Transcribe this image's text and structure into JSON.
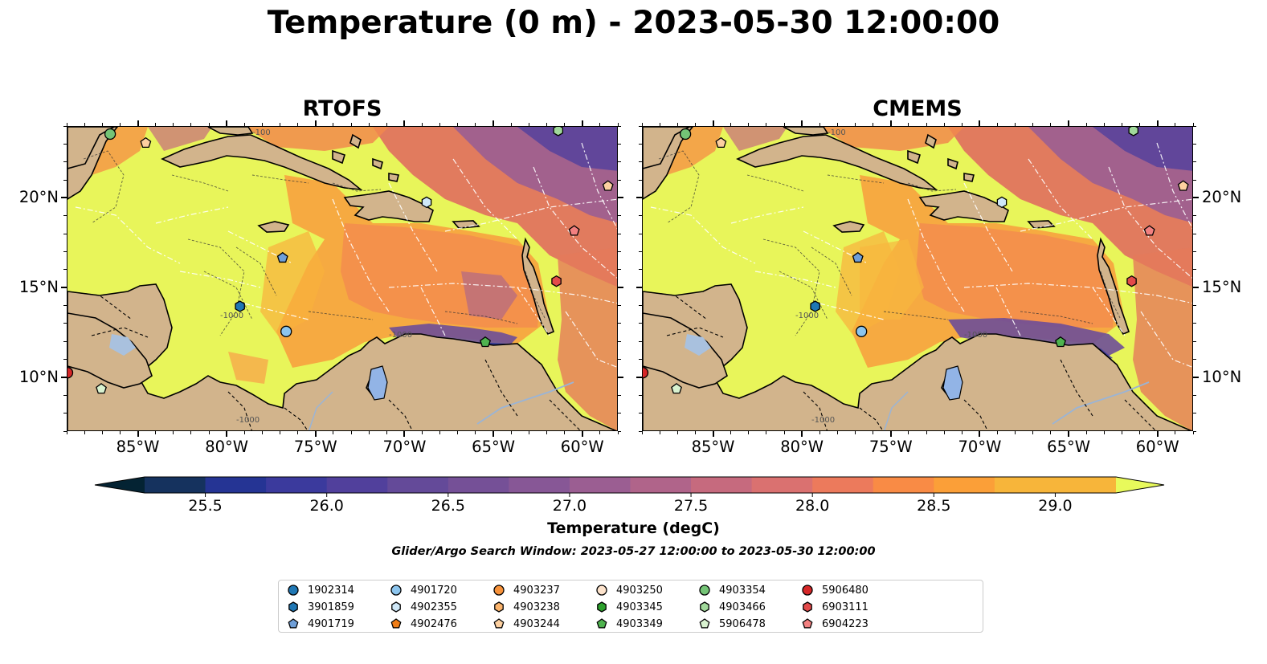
{
  "title": "Temperature (0 m) - 2023-05-30 12:00:00",
  "panels": [
    {
      "id": "rtofs",
      "title": "RTOFS"
    },
    {
      "id": "cmems",
      "title": "CMEMS"
    }
  ],
  "map": {
    "lon_range": [
      -89,
      -58
    ],
    "lat_range": [
      7,
      24
    ],
    "lon_ticks": [
      -85,
      -80,
      -75,
      -70,
      -65,
      -60
    ],
    "lat_ticks": [
      20,
      15,
      10
    ],
    "lon_tick_labels": [
      "85°W",
      "80°W",
      "75°W",
      "70°W",
      "65°W",
      "60°W"
    ],
    "lat_tick_labels": [
      "20°N",
      "15°N",
      "10°N"
    ],
    "land_color": "#d2b48c",
    "ocean_warm_color": "#e8f55a",
    "bathymetry_labels": [
      "-1000",
      "-100"
    ]
  },
  "colorbar": {
    "label": "Temperature (degC)",
    "min": 25.25,
    "max": 29.25,
    "step": 0.25,
    "tick_values": [
      25.5,
      26.0,
      26.5,
      27.0,
      27.5,
      28.0,
      28.5,
      29.0
    ],
    "tick_labels": [
      "25.5",
      "26.0",
      "26.5",
      "27.0",
      "27.5",
      "28.0",
      "28.5",
      "29.0"
    ],
    "extend": "both",
    "colors": [
      "#042333",
      "#15325e",
      "#253494",
      "#3b3a9d",
      "#51409c",
      "#644a99",
      "#755097",
      "#875796",
      "#9b5e92",
      "#b0648a",
      "#c66a7e",
      "#da7170",
      "#ec7a5c",
      "#f98b45",
      "#fb9f38",
      "#f7b53a",
      "#e8fa5b"
    ]
  },
  "search_window": "Glider/Argo Search Window: 2023-05-27 12:00:00 to 2023-05-30 12:00:00",
  "legend": [
    {
      "id": "1902314",
      "marker": "circle",
      "color": "#1f77b4"
    },
    {
      "id": "3901859",
      "marker": "hexagon",
      "color": "#1f77b4"
    },
    {
      "id": "4901719",
      "marker": "pentagon",
      "color": "#6f9fd8"
    },
    {
      "id": "4901720",
      "marker": "circle",
      "color": "#8cc5ee"
    },
    {
      "id": "4902355",
      "marker": "hexagon",
      "color": "#cfe8f8"
    },
    {
      "id": "4902476",
      "marker": "pentagon",
      "color": "#f07d16"
    },
    {
      "id": "4903237",
      "marker": "circle",
      "color": "#f7923a"
    },
    {
      "id": "4903238",
      "marker": "hexagon",
      "color": "#fbb46c"
    },
    {
      "id": "4903244",
      "marker": "pentagon",
      "color": "#fdd0a0"
    },
    {
      "id": "4903250",
      "marker": "circle",
      "color": "#fde3cc"
    },
    {
      "id": "4903345",
      "marker": "hexagon",
      "color": "#2ca02c"
    },
    {
      "id": "4903349",
      "marker": "pentagon",
      "color": "#4fb34f"
    },
    {
      "id": "4903354",
      "marker": "circle",
      "color": "#74c476"
    },
    {
      "id": "4903466",
      "marker": "hexagon",
      "color": "#a1d99b"
    },
    {
      "id": "5906478",
      "marker": "pentagon",
      "color": "#d9f2d0"
    },
    {
      "id": "5906480",
      "marker": "circle",
      "color": "#d62728"
    },
    {
      "id": "6903111",
      "marker": "hexagon",
      "color": "#e34a4a"
    },
    {
      "id": "6904223",
      "marker": "pentagon",
      "color": "#f28080"
    }
  ],
  "floats_on_map": [
    {
      "id": "4903354",
      "lon": -86.6,
      "lat": 23.6
    },
    {
      "id": "4903244",
      "lon": -84.6,
      "lat": 23.1
    },
    {
      "id": "5906478",
      "lon": -87.1,
      "lat": 9.4
    },
    {
      "id": "3901859",
      "lon": -79.3,
      "lat": 14.0
    },
    {
      "id": "4901719",
      "lon": -76.9,
      "lat": 16.7
    },
    {
      "id": "4901720",
      "lon": -76.7,
      "lat": 12.6
    },
    {
      "id": "4902355",
      "lon": -68.8,
      "lat": 19.8
    },
    {
      "id": "4903349",
      "lon": -65.5,
      "lat": 12.0
    },
    {
      "id": "6904223",
      "lon": -60.5,
      "lat": 18.2
    },
    {
      "id": "4903244",
      "lon": -58.6,
      "lat": 20.7
    },
    {
      "id": "6903111",
      "lon": -61.5,
      "lat": 15.4
    },
    {
      "id": "4903466",
      "lon": -61.4,
      "lat": 23.8
    },
    {
      "id": "5906480",
      "lon": -89.0,
      "lat": 10.3
    }
  ]
}
